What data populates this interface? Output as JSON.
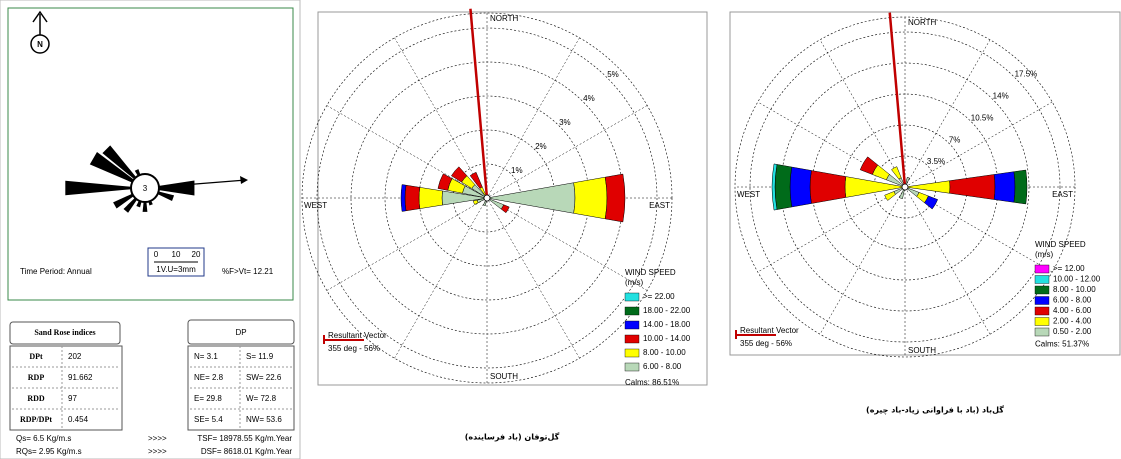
{
  "sand_rose": {
    "north": "N",
    "center": "3",
    "scale_ticks": [
      "0",
      "10",
      "20"
    ],
    "scale_unit": "1V.U=3mm",
    "time_period": "Time Period: Annual",
    "threshold": "%F>Vt= 12.21",
    "indices_title": "Sand Rose indices",
    "dp_title": "DP",
    "indices": [
      [
        "DPt",
        "202"
      ],
      [
        "RDP",
        "91.662"
      ],
      [
        "RDD",
        "97"
      ],
      [
        "RDP/DPt",
        "0.454"
      ]
    ],
    "dp": [
      [
        "N= 3.1",
        "S= 11.9"
      ],
      [
        "NE= 2.8",
        "SW= 22.6"
      ],
      [
        "E= 29.8",
        "W= 72.8"
      ],
      [
        "SE= 5.4",
        "NW= 53.6"
      ]
    ],
    "flux": [
      [
        "Qs= 6.5 Kg/m.s",
        ">>>>",
        "TSF= 18978.55 Kg/m.Year"
      ],
      [
        "RQs= 2.95 Kg/m.s",
        ">>>>",
        "DSF= 8618.01 Kg/m.Year"
      ]
    ]
  },
  "storm_rose": {
    "north": "NORTH",
    "south": "SOUTH",
    "west": "WEST",
    "east": "EAST",
    "rings": [
      "1%",
      "2%",
      "3%",
      "4%",
      "5%"
    ],
    "legend_title": "WIND SPEED",
    "legend_unit": "(m/s)",
    "legend": [
      ">= 22.00",
      "18.00 - 22.00",
      "14.00 - 18.00",
      "10.00 - 14.00",
      "8.00 - 10.00",
      "6.00 - 8.00"
    ],
    "calms": "Calms: 86.51%",
    "resultant_title": "Resultant Vector",
    "resultant": "355 deg - 56%",
    "caption": "گل‌توفان (باد فرساینده)"
  },
  "wind_rose": {
    "north": "NORTH",
    "south": "SOUTH",
    "west": "WEST",
    "east": "EAST",
    "rings": [
      "3.5%",
      "7%",
      "10.5%",
      "14%",
      "17.5%"
    ],
    "legend_title": "WIND SPEED",
    "legend_unit": "(m/s)",
    "legend": [
      ">= 12.00",
      "10.00 - 12.00",
      "8.00 - 10.00",
      "6.00 - 8.00",
      "4.00 - 6.00",
      "2.00 - 4.00",
      "0.50 - 2.00"
    ],
    "calms": "Calms: 51.37%",
    "resultant_title": "Resultant Vector",
    "resultant": "355 deg - 56%",
    "caption": "گل‌باد (باد با فراوانی زیاد-باد چیره)"
  }
}
